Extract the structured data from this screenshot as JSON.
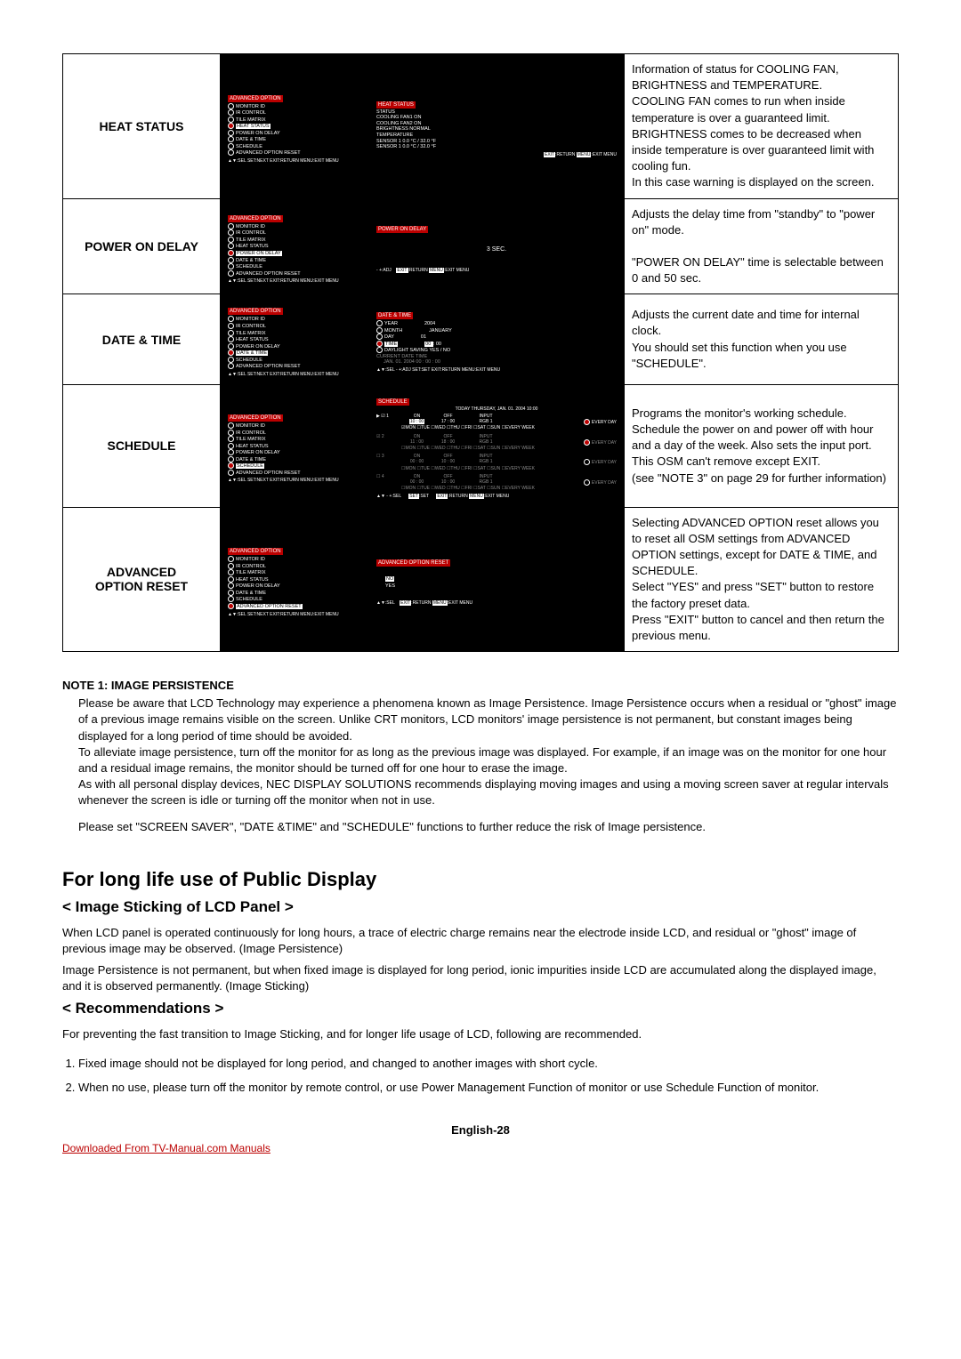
{
  "table": {
    "rows": [
      {
        "label": "HEAT STATUS",
        "menu": {
          "title": "ADVANCED OPTION",
          "items": [
            "MONITOR ID",
            "IR CONTROL",
            "TILE MATRIX",
            "HEAT STATUS",
            "POWER ON DELAY",
            "DATE & TIME",
            "SCHEDULE",
            "ADVANCED OPTION RESET"
          ],
          "selectedIndex": 3,
          "footer": "▲▼:SEL SET:NEXT EXIT:RETURN MENU:EXIT MENU"
        },
        "sub": {
          "title": "HEAT STATUS",
          "lines": [
            "STATUS",
            "COOLING  FAN1        ON",
            "COOLING  FAN2        ON",
            "BRIGHTNESS           NORMAL",
            "TEMPERATURE",
            "    SENSOR 1    0.0  °C  / 32.0 °F",
            "    SENSOR 1    0.0  °C  / 32.0 °F"
          ],
          "footer": "EXIT:RETURN  MENU:EXIT MENU"
        },
        "desc": "Information of status for COOLING FAN, BRIGHTNESS and TEMPERATURE.\nCOOLING FAN comes to run when inside temperature is over a guaranteed limit.\nBRIGHTNESS comes to be decreased when inside temperature is over guaranteed limit with cooling fun.\nIn this case warning is displayed on the screen."
      },
      {
        "label": "POWER ON DELAY",
        "menu": {
          "title": "ADVANCED OPTION",
          "items": [
            "MONITOR ID",
            "IR CONTROL",
            "TILE MATRIX",
            "HEAT STATUS",
            "POWER ON DELAY",
            "DATE & TIME",
            "SCHEDULE",
            "ADVANCED OPTION RESET"
          ],
          "selectedIndex": 4,
          "footer": "▲▼:SEL SET:NEXT EXIT:RETURN MENU:EXIT MENU"
        },
        "sub": {
          "title": "POWER ON DELAY",
          "center": "3 SEC.",
          "footer": "- +:ADJ   EXIT:RETURN MENU:EXIT MENU"
        },
        "desc": "Adjusts the delay time from \"standby\" to \"power on\" mode.\n\n\"POWER ON DELAY\" time is selectable between 0 and 50 sec."
      },
      {
        "label": "DATE & TIME",
        "menu": {
          "title": "ADVANCED OPTION",
          "items": [
            "MONITOR ID",
            "IR CONTROL",
            "TILE MATRIX",
            "HEAT STATUS",
            "POWER ON DELAY",
            "DATE & TIME",
            "SCHEDULE",
            "ADVANCED OPTION RESET"
          ],
          "selectedIndex": 5,
          "footer": "▲▼:SEL SET:NEXT EXIT:RETURN MENU:EXIT MENU"
        },
        "sub": {
          "title": "DATE & TIME",
          "dateLines": [
            {
              "label": "YEAR",
              "val": "2004",
              "sel": false
            },
            {
              "label": "MONTH",
              "val": "JANUARY",
              "sel": false
            },
            {
              "label": "DAY",
              "val": "01",
              "sel": false
            },
            {
              "label": "TIME",
              "val": "00 : 00",
              "sel": true,
              "valHL": true
            }
          ],
          "daylight": "DAYLIGHT SAVING   YES  /  NO",
          "current": "CURRENT DATE          TIME",
          "currentVal": "JAN. 01. 2004    00 : 00 : 00",
          "footer": "▲▼:SEL - +:ADJ SET:SET EXIT:RETURN MENU:EXIT MENU"
        },
        "desc": "Adjusts the current date and time for internal clock.\nYou should set this function when you use \"SCHEDULE\"."
      },
      {
        "label": "SCHEDULE",
        "menu": {
          "title": "ADVANCED OPTION",
          "items": [
            "MONITOR ID",
            "IR CONTROL",
            "TILE MATRIX",
            "HEAT STATUS",
            "POWER ON DELAY",
            "DATE & TIME",
            "SCHEDULE",
            "ADVANCED OPTION RESET"
          ],
          "selectedIndex": 6,
          "footer": "▲▼:SEL SET:NEXT EXIT:RETURN MENU:EXIT MENU"
        },
        "sub": {
          "title": "SCHEDULE",
          "today": "TODAY        THURSDAY,   JAN.  01.  2004              10:00",
          "entries": [
            {
              "mark": "▶ ☑ 1",
              "on": "10 : 00",
              "off": "17 : 00",
              "input": "RGB 1",
              "every": true,
              "days": "☑MON ☐TUE ☐WED ☐THU ☐FRI ☐SAT ☐SUN ☐EVERY WEEK",
              "active": true
            },
            {
              "mark": "   ☑ 2",
              "on": "11 : 00",
              "off": "18 : 00",
              "input": "RGB 1",
              "every": true,
              "days": "☐MON ☐TUE ☐WED ☐THU ☐FRI ☐SAT ☐SUN ☐EVERY WEEK",
              "active": false
            },
            {
              "mark": "   ☐ 3",
              "on": "00 : 00",
              "off": "10 : 00",
              "input": "RGB 1",
              "every": false,
              "days": "☐MON ☐TUE ☐WED ☐THU ☐FRI ☐SAT ☐SUN ☐EVERY WEEK",
              "active": false
            },
            {
              "mark": "   ☐ 4",
              "on": "00 : 00",
              "off": "10 : 00",
              "input": "RGB 1",
              "every": false,
              "days": "☐MON ☐TUE ☐WED ☐THU ☐FRI ☐SAT ☐SUN ☐EVERY WEEK",
              "active": false
            }
          ],
          "footer": "▲▼ - +:SEL             SET:SET             EXIT:RETURN MENU:EXIT MENU"
        },
        "desc": "Programs the monitor's working schedule.\nSchedule the power on and power off with hour and a day of the week. Also sets the input port.\nThis OSM can't remove except EXIT.\n(see \"NOTE 3\" on page 29 for further information)"
      },
      {
        "label": "ADVANCED OPTION RESET",
        "menu": {
          "title": "ADVANCED OPTION",
          "items": [
            "MONITOR ID",
            "IR CONTROL",
            "TILE MATRIX",
            "HEAT STATUS",
            "POWER ON DELAY",
            "DATE & TIME",
            "SCHEDULE",
            "ADVANCED OPTION RESET"
          ],
          "selectedIndex": 7,
          "footer": "▲▼:SEL SET:NEXT EXIT:RETURN MENU:EXIT MENU"
        },
        "sub": {
          "title": "ADVANCED OPTION RESET",
          "no": "NO",
          "yes": "YES",
          "footer": "▲▼:SEL       EXIT:RETURN MENU:EXIT MENU"
        },
        "desc": "Selecting ADVANCED OPTION reset allows you to reset all OSM settings from ADVANCED OPTION settings, except for DATE & TIME, and SCHEDULE.\nSelect \"YES\" and press \"SET\" button to restore the factory preset data.\nPress \"EXIT\" button to cancel and then return the previous menu."
      }
    ]
  },
  "note1": {
    "title": "NOTE 1: IMAGE PERSISTENCE",
    "p1": "Please be aware that LCD Technology may experience a phenomena known as Image Persistence. Image Persistence occurs when a residual or \"ghost\" image of a previous image remains visible on the screen. Unlike CRT monitors, LCD monitors' image persistence is not permanent, but constant images being displayed for a long period of time should be avoided.",
    "p2": "To alleviate image persistence, turn off the monitor for as long as the previous image was displayed. For example, if an image was on the monitor for one hour and a residual image remains, the monitor should be turned off for one hour to erase the image.",
    "p3": "As with all personal display devices, NEC DISPLAY SOLUTIONS recommends displaying moving images and using a moving screen saver at regular intervals whenever the screen is idle or turning off the monitor when not in use.",
    "p4": "Please set \"SCREEN SAVER\", \"DATE &TIME\" and \"SCHEDULE\" functions to further reduce the risk of Image persistence."
  },
  "longLife": {
    "title": "For long life use of Public Display",
    "sub1": "< Image Sticking of LCD Panel >",
    "p1": "When LCD panel is operated continuously for long hours, a trace of electric charge remains near the electrode inside LCD, and residual or \"ghost\" image of previous image may be observed. (Image Persistence)",
    "p2": "Image Persistence is not permanent, but when fixed image is displayed for long period, ionic impurities inside LCD are accumulated along the displayed image, and it is observed permanently. (Image Sticking)",
    "sub2": "< Recommendations >",
    "p3": "For preventing the fast transition to Image Sticking, and for longer life usage of LCD, following are recommended.",
    "rec1": "Fixed image should not be displayed for long period, and changed to another images with short cycle.",
    "rec2": "When no use, please turn off the monitor by remote control, or use Power Management Function of monitor or use Schedule Function of monitor."
  },
  "pageFooter": "English-28",
  "download": "Downloaded From TV-Manual.com Manuals"
}
